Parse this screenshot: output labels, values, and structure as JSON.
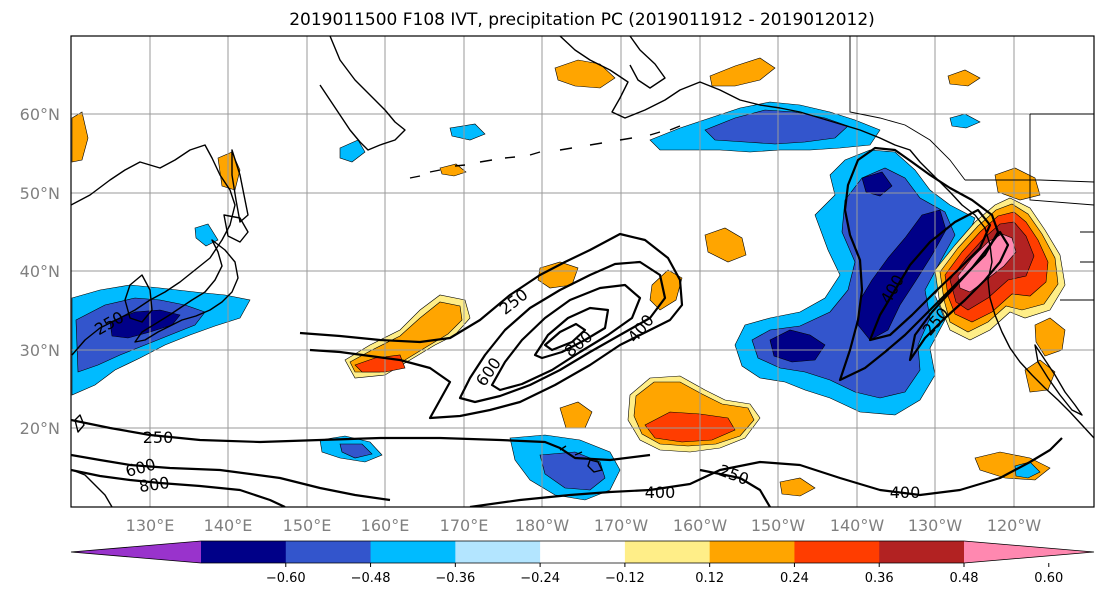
{
  "title": "2019011500 F108 IVT, precipitation PC (2019011912 - 2019012012)",
  "lat_labels": [
    "60°N",
    "50°N",
    "40°N",
    "30°N",
    "20°N"
  ],
  "lon_labels": [
    "130°E",
    "140°E",
    "150°E",
    "160°E",
    "170°E",
    "180°W",
    "170°W",
    "160°W",
    "150°W",
    "140°W",
    "130°W",
    "120°W"
  ],
  "contour_labels": [
    "250",
    "400",
    "600",
    "800",
    "250",
    "400",
    "250",
    "600",
    "800",
    "400",
    "250",
    "400",
    "400",
    "250"
  ],
  "colorbar": {
    "ticks": [
      "−0.60",
      "−0.48",
      "−0.36",
      "−0.24",
      "−0.12",
      "0.12",
      "0.24",
      "0.36",
      "0.48",
      "0.60"
    ],
    "colors": [
      "#9933cc",
      "#000088",
      "#3355cc",
      "#00bbff",
      "#b3e5ff",
      "#ffffff",
      "#ffee88",
      "#ffa500",
      "#ff3d00",
      "#b22222",
      "#ff88b0"
    ]
  },
  "chart_data": {
    "type": "map",
    "projection": "plate-carree",
    "lon_range": [
      "120°E",
      "110°W"
    ],
    "lat_range": [
      "10°N",
      "70°N"
    ],
    "grid": true,
    "filled_field": "precipitation PC",
    "filled_levels": [
      -0.6,
      -0.48,
      -0.36,
      -0.24,
      -0.12,
      0.12,
      0.24,
      0.36,
      0.48,
      0.6
    ],
    "contour_field": "IVT",
    "contour_levels": [
      250,
      400,
      600,
      800
    ]
  }
}
